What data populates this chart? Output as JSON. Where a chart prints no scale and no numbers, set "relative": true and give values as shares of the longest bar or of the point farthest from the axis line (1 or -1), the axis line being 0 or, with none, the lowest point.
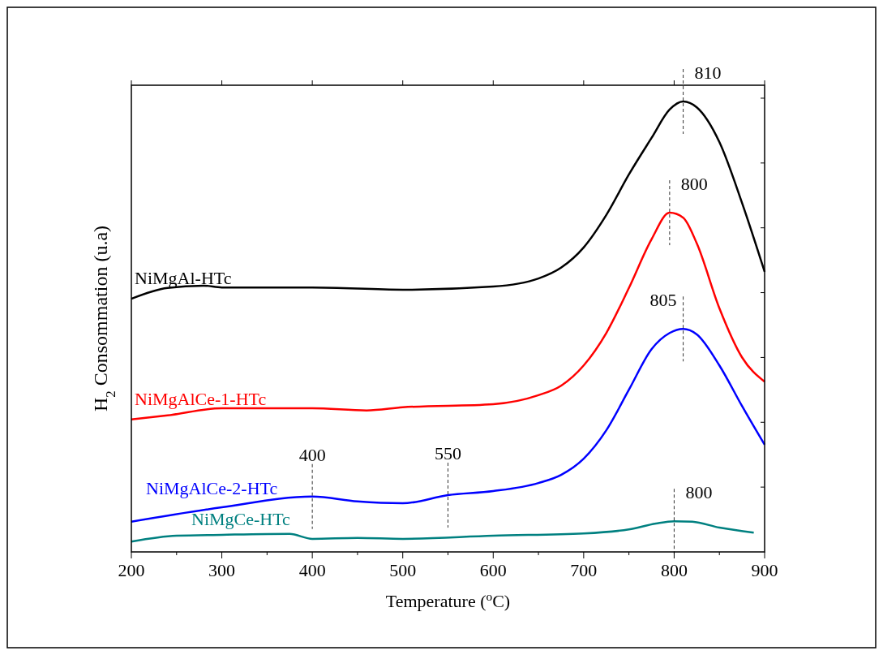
{
  "chart_data": {
    "type": "line",
    "xlabel": "Temperature ($^{o}$C)",
    "ylabel": "H$_{2}$ Consommation (u.a)",
    "relative": true,
    "xlim": [
      200,
      900
    ],
    "xticks": [
      200,
      300,
      400,
      500,
      600,
      700,
      800,
      900
    ],
    "legend": false,
    "grid": false,
    "marker": "none",
    "line_style": "solid",
    "series": [
      {
        "name": "NiMgAl-HTc",
        "color": "#000000",
        "x": [
          200,
          240,
          280,
          300,
          400,
          500,
          600,
          650,
          675,
          700,
          725,
          750,
          775,
          795,
          810,
          825,
          850,
          875,
          900
        ],
        "values": [
          0.562,
          0.586,
          0.591,
          0.587,
          0.587,
          0.582,
          0.589,
          0.607,
          0.631,
          0.676,
          0.748,
          0.838,
          0.919,
          0.982,
          1,
          0.987,
          0.91,
          0.775,
          0.622
        ]
      },
      {
        "name": "NiMgAlCe-1-HTc",
        "color": "#ff0000",
        "x": [
          200,
          240,
          300,
          400,
          460,
          500,
          600,
          650,
          675,
          700,
          725,
          750,
          775,
          795,
          810,
          825,
          850,
          875,
          900
        ],
        "values": [
          0.294,
          0.303,
          0.319,
          0.319,
          0.314,
          0.321,
          0.328,
          0.348,
          0.369,
          0.414,
          0.486,
          0.586,
          0.694,
          0.753,
          0.742,
          0.685,
          0.541,
          0.432,
          0.378
        ]
      },
      {
        "name": "NiMgAlCe-2-HTc",
        "color": "#0000ff",
        "x": [
          200,
          300,
          400,
          450,
          500,
          550,
          600,
          650,
          675,
          700,
          725,
          750,
          775,
          795,
          810,
          825,
          850,
          875,
          900
        ],
        "values": [
          0.067,
          0.099,
          0.123,
          0.112,
          0.108,
          0.126,
          0.135,
          0.153,
          0.171,
          0.207,
          0.27,
          0.36,
          0.45,
          0.486,
          0.495,
          0.483,
          0.414,
          0.324,
          0.238
        ]
      },
      {
        "name": "NiMgCe-HTc",
        "color": "#008080",
        "x": [
          200,
          250,
          300,
          375,
          400,
          450,
          500,
          600,
          700,
          750,
          780,
          800,
          820,
          850,
          888
        ],
        "values": [
          0.023,
          0.036,
          0.038,
          0.04,
          0.029,
          0.031,
          0.029,
          0.036,
          0.041,
          0.05,
          0.063,
          0.068,
          0.067,
          0.054,
          0.043
        ]
      }
    ],
    "annotations": [
      {
        "text": "810",
        "x": 810,
        "y": 1
      },
      {
        "text": "800",
        "x": 795,
        "y": 0.753
      },
      {
        "text": "805",
        "x": 810,
        "y": 0.495
      },
      {
        "text": "400",
        "x": 400,
        "y": 0.123
      },
      {
        "text": "550",
        "x": 550,
        "y": 0.126
      },
      {
        "text": "800",
        "x": 800,
        "y": 0.068
      }
    ]
  }
}
